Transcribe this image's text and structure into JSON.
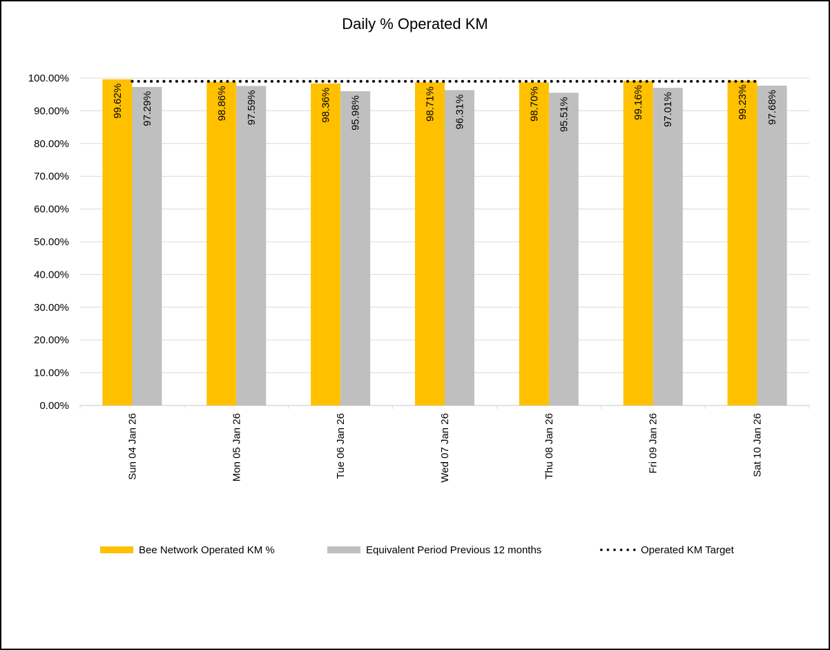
{
  "chart_data": {
    "type": "bar",
    "title": "Daily % Operated KM",
    "xlabel": "",
    "ylabel": "",
    "ylim": [
      0,
      100
    ],
    "yticks": [
      "0.00%",
      "10.00%",
      "20.00%",
      "30.00%",
      "40.00%",
      "50.00%",
      "60.00%",
      "70.00%",
      "80.00%",
      "90.00%",
      "100.00%"
    ],
    "grid": true,
    "legend_position": "bottom",
    "categories": [
      "Sun 04 Jan 26",
      "Mon 05 Jan 26",
      "Tue 06 Jan 26",
      "Wed 07 Jan 26",
      "Thu 08 Jan 26",
      "Fri 09 Jan 26",
      "Sat 10 Jan 26"
    ],
    "series": [
      {
        "name": "Bee Network Operated KM %",
        "type": "bar",
        "color": "#FFC000",
        "values": [
          99.62,
          98.86,
          98.36,
          98.71,
          98.7,
          99.16,
          99.23
        ],
        "labels": [
          "99.62%",
          "98.86%",
          "98.36%",
          "98.71%",
          "98.70%",
          "99.16%",
          "99.23%"
        ]
      },
      {
        "name": "Equivalent Period Previous 12 months",
        "type": "bar",
        "color": "#BFBFBF",
        "values": [
          97.29,
          97.59,
          95.98,
          96.31,
          95.51,
          97.01,
          97.68
        ],
        "labels": [
          "97.29%",
          "97.59%",
          "95.98%",
          "96.31%",
          "95.51%",
          "97.01%",
          "97.68%"
        ]
      },
      {
        "name": "Operated KM Target",
        "type": "line",
        "style": "dotted",
        "color": "#000000",
        "values": [
          99,
          99,
          99,
          99,
          99,
          99,
          99
        ]
      }
    ]
  },
  "colors": {
    "primary_bar": "#FFC000",
    "secondary_bar": "#BFBFBF",
    "target_line": "#000000",
    "gridline": "#D9D9D9"
  },
  "legend": {
    "items": [
      {
        "label": "Bee Network Operated KM %"
      },
      {
        "label": "Equivalent Period Previous 12 months"
      },
      {
        "label": "Operated KM Target"
      }
    ]
  }
}
